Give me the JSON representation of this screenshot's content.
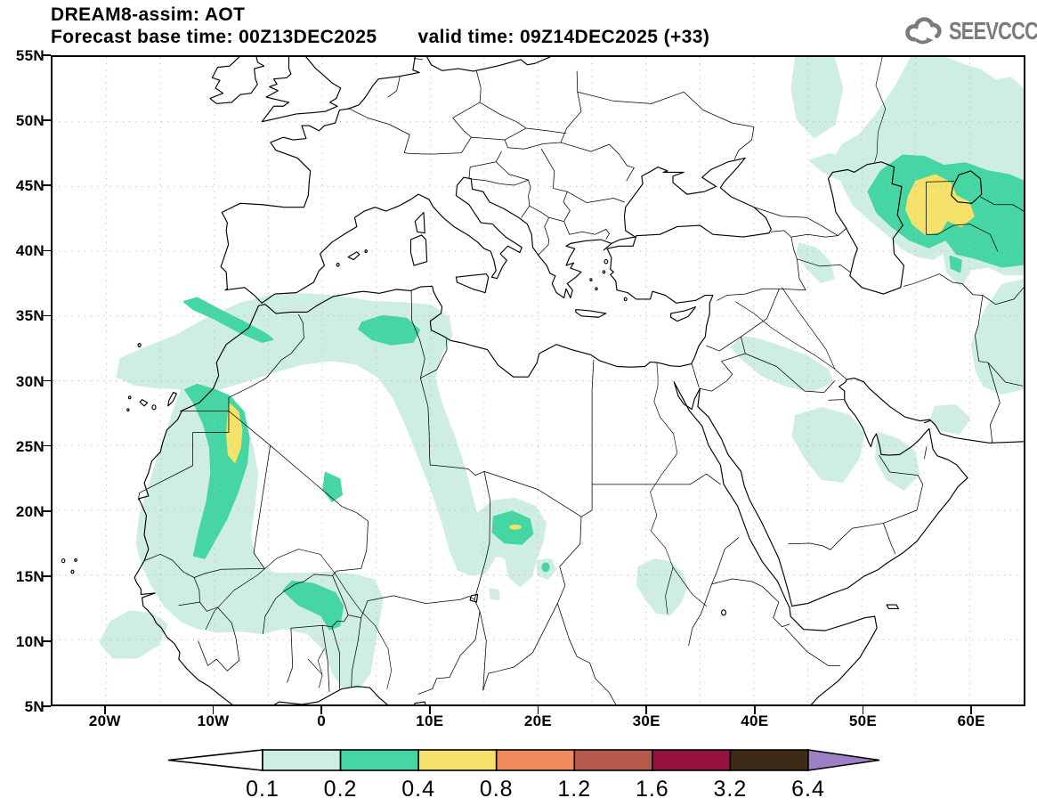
{
  "header": {
    "model_title": "DREAM8-assim: AOT",
    "forecast_base": "Forecast base time: 00Z13DEC2025",
    "valid_time": "valid time: 09Z14DEC2025 (+33)"
  },
  "branding": {
    "logo_text": "SEEVCCC",
    "logo_color": "#7b7b7b"
  },
  "map": {
    "lon_min": -25,
    "lon_max": 65,
    "lat_min": 5,
    "lat_max": 55,
    "grid_step_deg": 5,
    "grid_color": "#b9b9b9",
    "x_ticks": [
      {
        "label": "20W",
        "lon": -20
      },
      {
        "label": "10W",
        "lon": -10
      },
      {
        "label": "0",
        "lon": 0
      },
      {
        "label": "10E",
        "lon": 10
      },
      {
        "label": "20E",
        "lon": 20
      },
      {
        "label": "30E",
        "lon": 30
      },
      {
        "label": "40E",
        "lon": 40
      },
      {
        "label": "50E",
        "lon": 50
      },
      {
        "label": "60E",
        "lon": 60
      }
    ],
    "y_ticks": [
      {
        "label": "55N",
        "lat": 55
      },
      {
        "label": "50N",
        "lat": 50
      },
      {
        "label": "45N",
        "lat": 45
      },
      {
        "label": "40N",
        "lat": 40
      },
      {
        "label": "35N",
        "lat": 35
      },
      {
        "label": "30N",
        "lat": 30
      },
      {
        "label": "25N",
        "lat": 25
      },
      {
        "label": "20N",
        "lat": 20
      },
      {
        "label": "15N",
        "lat": 15
      },
      {
        "label": "10N",
        "lat": 10
      },
      {
        "label": "5N",
        "lat": 5
      }
    ]
  },
  "colorbar": {
    "levels": [
      "0.1",
      "0.2",
      "0.4",
      "0.8",
      "1.2",
      "1.6",
      "3.2",
      "6.4"
    ],
    "colors": [
      "#cfeee3",
      "#46d6a3",
      "#f4e26a",
      "#f08a5c",
      "#b55a4a",
      "#951140",
      "#3d2b18"
    ],
    "below_color": "#ffffff",
    "above_color": "#9d7fc4"
  },
  "chart_data": {
    "type": "heatmap",
    "subtype": "filled-contour-geographic-map",
    "variable": "AOT (aerosol optical thickness)",
    "title": "DREAM8-assim: AOT",
    "contour_levels": [
      0.1,
      0.2,
      0.4,
      0.8,
      1.2,
      1.6,
      3.2,
      6.4
    ],
    "lon_range": [
      -25,
      65
    ],
    "lat_range": [
      5,
      55
    ],
    "grid": "dotted, every 5 degrees",
    "legend_position": "bottom horizontal color bar with open min arrow (white) and max arrow (purple)",
    "shaded_regions": [
      {
        "area": "West African coastal plume (Western Sahara / Mauritania, 16-30N 6-17W)",
        "peak_value_band": "0.4-0.8"
      },
      {
        "area": "Atlas band Morocco to N Algeria (33-37N 19W-0)",
        "peak_value_band": "0.2-0.4"
      },
      {
        "area": "NE Algeria / Tunisia (32-36N 3-12E)",
        "peak_value_band": "0.2-0.4"
      },
      {
        "area": "Algeria to Niger SSE swath (15-31N 5-16E)",
        "peak_value_band": "0.1-0.2"
      },
      {
        "area": "Sahel band Burkina Faso / Benin / Niger (6-15N 13W-6E)",
        "peak_value_band": "0.2-0.4"
      },
      {
        "area": "Atlantic blob off Guinea (8-12N 14-21W)",
        "peak_value_band": "0.1-0.2"
      },
      {
        "area": "Chad / Bodele (14-21N 14-21E)",
        "peak_value_band": "0.4-0.8 (small yellow core near 18.7N 18E)"
      },
      {
        "area": "Sudan (12-16N 29-34E)",
        "peak_value_band": "0.1-0.2 with small 0.2-0.4 spot near 15.5N 20.7E"
      },
      {
        "area": "Iraq / E Syria (29-33N 38-47E)",
        "peak_value_band": "0.1-0.2"
      },
      {
        "area": "E Saudi Arabia / Persian Gulf / UAE / S Iran (21-28N 43-60E)",
        "peak_value_band": "0.1-0.2"
      },
      {
        "area": "SE Iran / Afghanistan / Pakistan corner (29-38N 60-65E)",
        "peak_value_band": "0.1-0.2"
      },
      {
        "area": "Caspian / Aral region (37-55N 43-65E)",
        "peak_value_band": "0.4-0.8 (yellow core 41-46N 54-60E)"
      }
    ]
  }
}
